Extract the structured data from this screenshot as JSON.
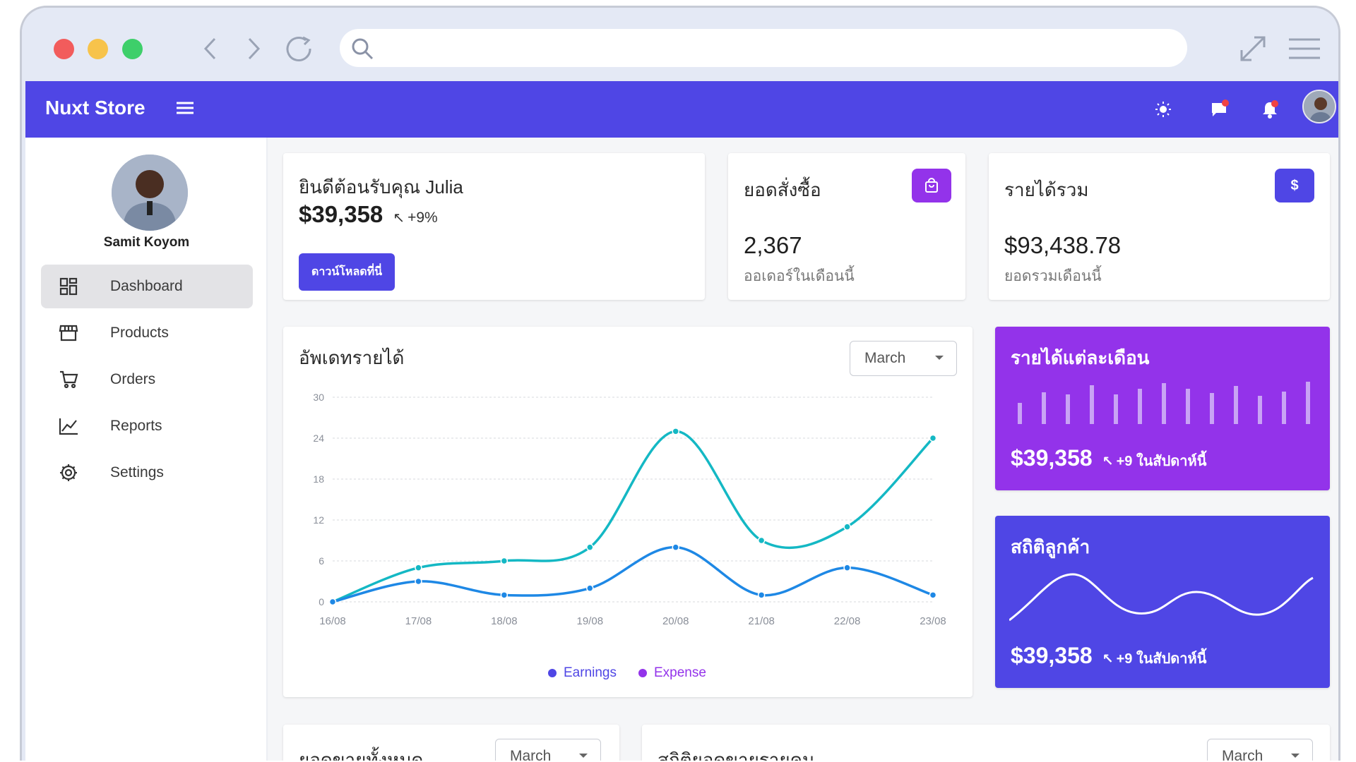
{
  "app": {
    "brand": "Nuxt Store"
  },
  "user": {
    "name": "Samit Koyom"
  },
  "sidebar": {
    "items": [
      {
        "label": "Dashboard",
        "icon": "dashboard-icon",
        "active": true
      },
      {
        "label": "Products",
        "icon": "store-icon"
      },
      {
        "label": "Orders",
        "icon": "cart-icon"
      },
      {
        "label": "Reports",
        "icon": "chart-line-icon"
      },
      {
        "label": "Settings",
        "icon": "gear-icon"
      }
    ]
  },
  "welcome": {
    "title": "ยินดีต้อนรับคุณ Julia",
    "amount": "$39,358",
    "change": "+9%",
    "button": "ดาวน์โหลดที่นี่"
  },
  "orders": {
    "title": "ยอดสั่งซื้อ",
    "value": "2,367",
    "subtitle": "ออเดอร์ในเดือนนี้",
    "color": "#9333ea"
  },
  "revenue": {
    "title": "รายได้รวม",
    "value": "$93,438.78",
    "subtitle": "ยอดรวมเดือนนี้",
    "color": "#4f46e5"
  },
  "revenue_update": {
    "title": "อัพเดทรายได้",
    "select": "March",
    "legend": [
      "Earnings",
      "Expense"
    ]
  },
  "monthly": {
    "title": "รายได้แต่ละเดือน",
    "amount": "$39,358",
    "note": "+9 ในสัปดาห์นี้",
    "color": "#9333ea"
  },
  "customers": {
    "title": "สถิติลูกค้า",
    "amount": "$39,358",
    "note": "+9 ในสัปดาห์นี้",
    "color": "#4f46e5"
  },
  "bottom": {
    "total_sales": "ยอดขายทั้งหมด",
    "select1": "March",
    "per_person": "สถิติยอดขายรายคน",
    "select2": "March"
  },
  "chart_data": {
    "type": "line",
    "x": [
      "16/08",
      "17/08",
      "18/08",
      "19/08",
      "20/08",
      "21/08",
      "22/08",
      "23/08"
    ],
    "yticks": [
      0,
      6,
      12,
      18,
      24,
      30
    ],
    "ylim": [
      0,
      30
    ],
    "series": [
      {
        "name": "Earnings",
        "color": "#1e88e5",
        "values": [
          0,
          3,
          1,
          2,
          8,
          1,
          5,
          1
        ]
      },
      {
        "name": "Expense",
        "color": "#14b8c4",
        "values": [
          0,
          5,
          6,
          8,
          25,
          9,
          11,
          24
        ]
      }
    ],
    "legend_colors": [
      "#4f46e5",
      "#9333ea"
    ],
    "legend": "bottom-center"
  }
}
